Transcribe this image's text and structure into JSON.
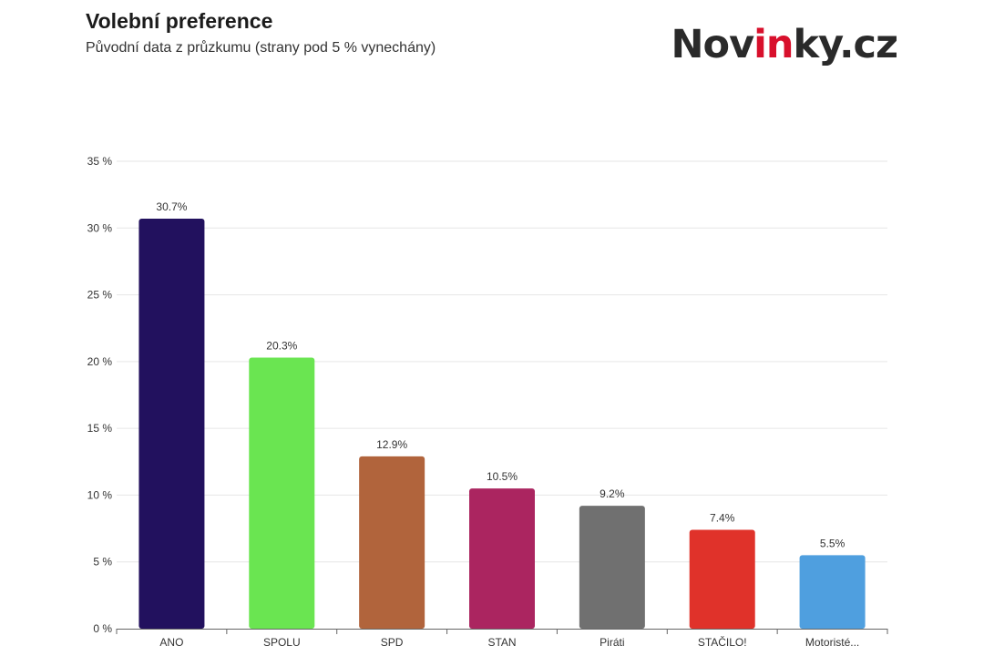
{
  "header": {
    "title": "Volební preference",
    "subtitle": "Původní data z průzkumu (strany pod 5 % vynechány)"
  },
  "logo": {
    "text_before": "Nov",
    "text_accent": "in",
    "text_after": "ky.cz",
    "accent_color": "#d8102c"
  },
  "chart_data": {
    "type": "bar",
    "title": "Volební preference",
    "subtitle": "Původní data z průzkumu (strany pod 5 % vynechány)",
    "xlabel": "",
    "ylabel": "",
    "categories": [
      "ANO",
      "SPOLU",
      "SPD",
      "STAN",
      "Piráti",
      "STAČILO!",
      "Motoristé..."
    ],
    "values": [
      30.7,
      20.3,
      12.9,
      10.5,
      9.2,
      7.4,
      5.5
    ],
    "data_labels": [
      "30.7%",
      "20.3%",
      "12.9%",
      "10.5%",
      "9.2%",
      "7.4%",
      "5.5%"
    ],
    "colors": [
      "#22115e",
      "#6ae551",
      "#b1643c",
      "#ab2560",
      "#707070",
      "#e0322a",
      "#4f9fdf"
    ],
    "ylim": [
      0,
      35
    ],
    "yticks": [
      0,
      5,
      10,
      15,
      20,
      25,
      30,
      35
    ],
    "ytick_labels": [
      "0 %",
      "5 %",
      "10 %",
      "15 %",
      "20 %",
      "25 %",
      "30 %",
      "35 %"
    ],
    "grid": true,
    "legend": "none"
  }
}
